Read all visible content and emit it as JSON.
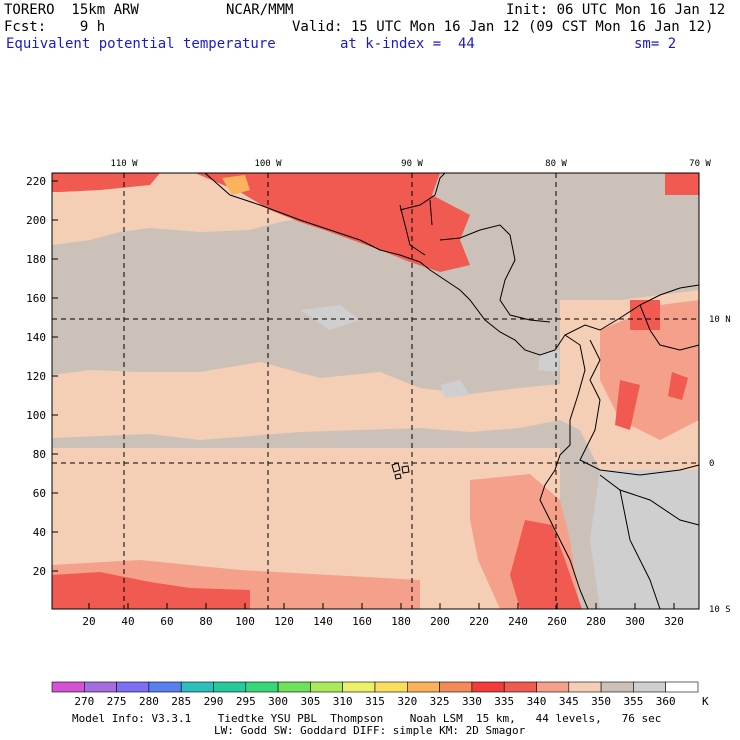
{
  "header": {
    "model": "TORERO  15km ARW",
    "org": "NCAR/MMM",
    "init": "Init: 06 UTC Mon 16 Jan 12",
    "fcst": "Fcst:    9 h",
    "valid": "Valid: 15 UTC Mon 16 Jan 12 (09 CST Mon 16 Jan 12)",
    "field": "Equivalent potential temperature",
    "level": "at k-index =  44",
    "smooth": "sm= 2"
  },
  "map": {
    "lon_labels": [
      "110 W",
      "100 W",
      "90 W",
      "80 W",
      "70 W"
    ],
    "lat_labels": [
      "10 N",
      "0",
      "10 S"
    ],
    "y_ticks": [
      "20",
      "40",
      "60",
      "80",
      "100",
      "120",
      "140",
      "160",
      "180",
      "200",
      "220"
    ],
    "x_ticks": [
      "20",
      "40",
      "60",
      "80",
      "100",
      "120",
      "140",
      "160",
      "180",
      "200",
      "220",
      "240",
      "260",
      "280",
      "300",
      "320"
    ],
    "colors": {
      "background_grey": "#cbc1b9",
      "peach": "#f4cfb6",
      "salmon": "#f4a08a",
      "red": "#f05a50",
      "bright_red": "#f23c3c",
      "light_grey": "#cfcfcf",
      "orange": "#fcb25c"
    }
  },
  "colorbar": {
    "colors": [
      "#d452d4",
      "#a46ee0",
      "#7e6ef2",
      "#5a80f0",
      "#2ebebc",
      "#26c89c",
      "#3ad67a",
      "#6ee05a",
      "#aaea5a",
      "#ecf06a",
      "#fcde5e",
      "#fcb25c",
      "#f48a5a",
      "#f23c3c",
      "#f05a50",
      "#f4a08a",
      "#f4cfb6",
      "#cbc1b9",
      "#cfcfcf",
      "#ffffff"
    ],
    "labels": [
      "270",
      "275",
      "280",
      "285",
      "290",
      "295",
      "300",
      "305",
      "310",
      "315",
      "320",
      "325",
      "330",
      "335",
      "340",
      "345",
      "350",
      "355",
      "360"
    ],
    "unit": "K"
  },
  "footer": {
    "line1": "Model Info: V3.3.1    Tiedtke YSU PBL  Thompson    Noah LSM  15 km,   44 levels,   76 sec",
    "line2": "LW: Godd SW: Goddard DIFF: simple KM: 2D Smagor"
  }
}
